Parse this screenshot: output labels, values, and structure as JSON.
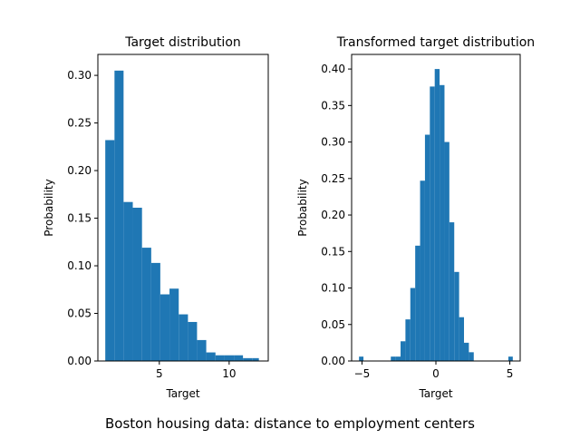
{
  "figure": {
    "suptitle": "Boston housing data: distance to employment centers"
  },
  "chart_data": [
    {
      "type": "bar",
      "title": "Target distribution",
      "xlabel": "Target",
      "ylabel": "Probability",
      "xlim": [
        0.6,
        12.8
      ],
      "ylim": [
        0,
        0.322
      ],
      "xticks": [
        5,
        10
      ],
      "yticks": [
        0.0,
        0.05,
        0.1,
        0.15,
        0.2,
        0.25,
        0.3
      ],
      "ytick_labels": [
        "0.00",
        "0.05",
        "0.10",
        "0.15",
        "0.20",
        "0.25",
        "0.30"
      ],
      "grid": false,
      "color": "#1f77b4",
      "bin_edges": [
        1.13,
        1.79,
        2.44,
        3.1,
        3.76,
        4.42,
        5.07,
        5.73,
        6.39,
        7.05,
        7.7,
        8.36,
        9.02,
        9.68,
        10.34,
        10.99,
        11.65,
        12.13
      ],
      "values": [
        0.232,
        0.305,
        0.167,
        0.161,
        0.119,
        0.103,
        0.07,
        0.076,
        0.049,
        0.041,
        0.022,
        0.009,
        0.006,
        0.006,
        0.006,
        0.003,
        0.003
      ]
    },
    {
      "type": "bar",
      "title": "Transformed target distribution",
      "xlabel": "Target",
      "ylabel": "Probability",
      "xlim": [
        -5.7,
        5.7
      ],
      "ylim": [
        0,
        0.42
      ],
      "xticks": [
        -5,
        0,
        5
      ],
      "yticks": [
        0.0,
        0.05,
        0.1,
        0.15,
        0.2,
        0.25,
        0.3,
        0.35,
        0.4
      ],
      "ytick_labels": [
        "0.00",
        "0.05",
        "0.10",
        "0.15",
        "0.20",
        "0.25",
        "0.30",
        "0.35",
        "0.40"
      ],
      "grid": false,
      "color": "#1f77b4",
      "bin_edges": [
        -5.2,
        -4.9,
        -3.05,
        -2.72,
        -2.39,
        -2.06,
        -1.73,
        -1.4,
        -1.07,
        -0.74,
        -0.41,
        -0.08,
        0.25,
        0.58,
        0.91,
        1.24,
        1.57,
        1.9,
        2.23,
        2.56,
        2.89,
        4.9,
        5.2
      ],
      "values": [
        0.006,
        0,
        0.006,
        0.006,
        0.027,
        0.057,
        0.1,
        0.158,
        0.247,
        0.31,
        0.376,
        0.4,
        0.378,
        0.3,
        0.19,
        0.122,
        0.06,
        0.025,
        0.012,
        0,
        0,
        0.006
      ]
    }
  ]
}
